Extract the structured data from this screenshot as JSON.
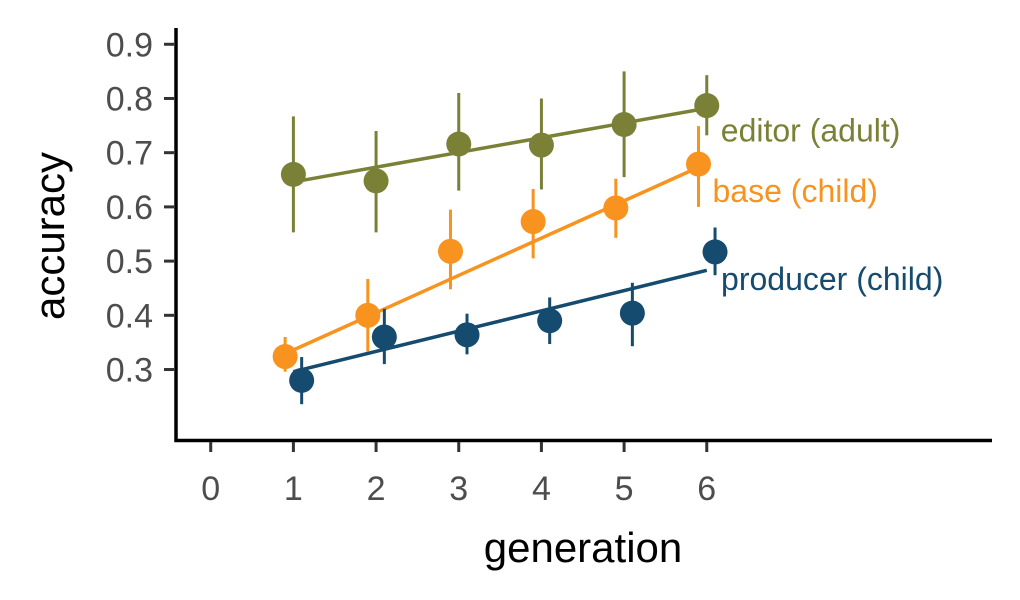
{
  "chart_data": {
    "type": "scatter",
    "title": "",
    "xlabel": "generation",
    "ylabel": "accuracy",
    "x_ticks": [
      "0",
      "1",
      "2",
      "3",
      "4",
      "5",
      "6"
    ],
    "y_ticks": [
      "0.3",
      "0.4",
      "0.5",
      "0.6",
      "0.7",
      "0.8",
      "0.9"
    ],
    "xlim": [
      -0.42,
      9.45
    ],
    "ylim": [
      0.17,
      0.93
    ],
    "grid": false,
    "legend": "none",
    "series": [
      {
        "name": "editor (adult)",
        "color": "#7a8136",
        "dodge": 0,
        "x": [
          1,
          2,
          3,
          4,
          5,
          6
        ],
        "y": [
          0.66,
          0.648,
          0.716,
          0.714,
          0.752,
          0.787
        ],
        "err_low": [
          0.553,
          0.553,
          0.63,
          0.632,
          0.655,
          0.732
        ],
        "err_high": [
          0.767,
          0.74,
          0.81,
          0.8,
          0.85,
          0.843
        ],
        "fit": {
          "x": [
            1,
            6
          ],
          "y": [
            0.646,
            0.782
          ]
        }
      },
      {
        "name": "base (child)",
        "color": "#f7931e",
        "dodge": -0.1,
        "x": [
          1,
          2,
          3,
          4,
          5,
          6
        ],
        "y": [
          0.324,
          0.4,
          0.518,
          0.573,
          0.598,
          0.679
        ],
        "err_low": [
          0.296,
          0.333,
          0.448,
          0.505,
          0.543,
          0.6
        ],
        "err_high": [
          0.36,
          0.467,
          0.595,
          0.633,
          0.652,
          0.749
        ],
        "fit": {
          "x": [
            1,
            6
          ],
          "y": [
            0.336,
            0.68
          ]
        }
      },
      {
        "name": "producer (child)",
        "color": "#154b6e",
        "dodge": 0.1,
        "x": [
          1,
          2,
          3,
          4,
          5,
          6
        ],
        "y": [
          0.28,
          0.36,
          0.364,
          0.39,
          0.404,
          0.517
        ],
        "err_low": [
          0.236,
          0.31,
          0.328,
          0.347,
          0.343,
          0.474
        ],
        "err_high": [
          0.323,
          0.412,
          0.403,
          0.433,
          0.46,
          0.562
        ],
        "fit": {
          "x": [
            1,
            6
          ],
          "y": [
            0.296,
            0.483
          ]
        }
      }
    ]
  }
}
